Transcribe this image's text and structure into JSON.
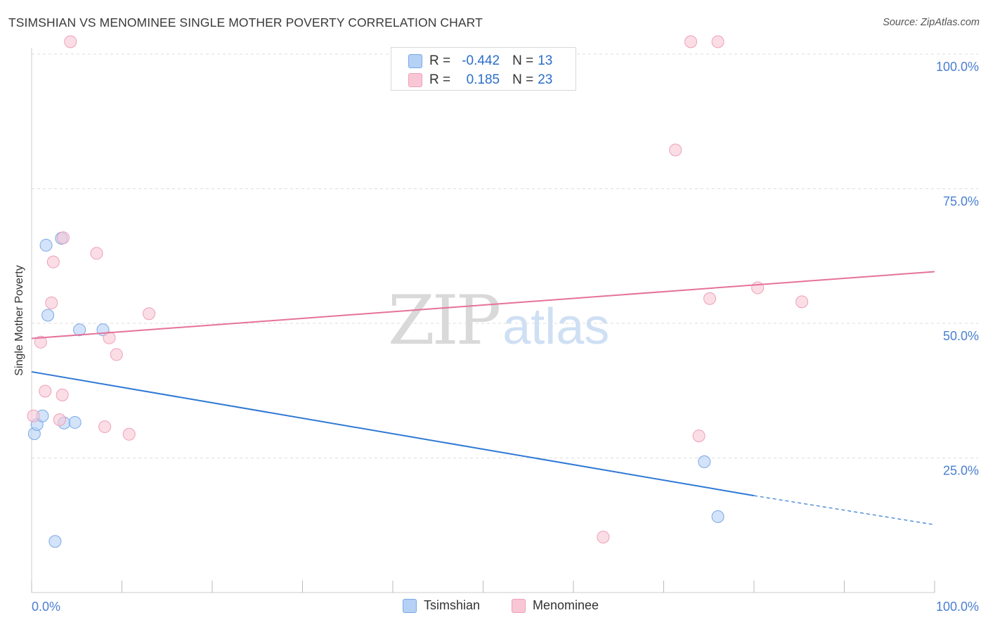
{
  "header": {
    "title": "TSIMSHIAN VS MENOMINEE SINGLE MOTHER POVERTY CORRELATION CHART",
    "source": "Source: ZipAtlas.com"
  },
  "watermark": {
    "zip": "ZIP",
    "atlas": "atlas"
  },
  "stats": {
    "rows": [
      {
        "r_label": "R = ",
        "r_value": "-0.442",
        "n_label": "N = ",
        "n_value": "13"
      },
      {
        "r_label": "R = ",
        "r_value": "0.185",
        "n_label": "N = ",
        "n_value": "23"
      }
    ]
  },
  "legend": {
    "items": [
      {
        "label": "Tsimshian"
      },
      {
        "label": "Menominee"
      }
    ]
  },
  "colors": {
    "tsimshian_fill": "#b5d1f5",
    "tsimshian_stroke": "#7aa8e6",
    "tsimshian_line": "#2f78d4",
    "menominee_fill": "#f9c6d5",
    "menominee_stroke": "#eea0b8",
    "menominee_line": "#e5729b",
    "tick_label": "#4a7fd0",
    "grid": "#dddddd"
  },
  "chart_data": {
    "type": "scatter",
    "title": "TSIMSHIAN VS MENOMINEE SINGLE MOTHER POVERTY CORRELATION CHART",
    "xlabel": "",
    "ylabel": "Single Mother Poverty",
    "xlim": [
      0,
      100
    ],
    "ylim": [
      0,
      104
    ],
    "x_tick_labels": [
      "0.0%",
      "100.0%"
    ],
    "y_ticks": [
      25,
      50,
      75,
      100
    ],
    "y_tick_labels": [
      "25.0%",
      "50.0%",
      "75.0%",
      "100.0%"
    ],
    "grid": "horizontal dashed",
    "legend_position": "bottom-center",
    "series": [
      {
        "name": "Tsimshian",
        "points": [
          [
            0.3,
            29.5
          ],
          [
            0.6,
            31.2
          ],
          [
            1.2,
            32.8
          ],
          [
            1.6,
            64.5
          ],
          [
            1.8,
            51.5
          ],
          [
            2.6,
            9.5
          ],
          [
            3.3,
            65.8
          ],
          [
            3.6,
            31.5
          ],
          [
            4.8,
            31.6
          ],
          [
            5.3,
            48.8
          ],
          [
            7.9,
            48.8
          ],
          [
            74.5,
            24.3
          ],
          [
            76.0,
            14.1
          ]
        ],
        "trend": {
          "x0": 0,
          "y0": 41.0,
          "x1": 80,
          "y1": 18.0,
          "dashed_to_x": 100,
          "dashed_to_y": 12.6
        }
      },
      {
        "name": "Menominee",
        "points": [
          [
            0.2,
            32.8
          ],
          [
            1.0,
            46.5
          ],
          [
            1.5,
            37.4
          ],
          [
            2.2,
            53.8
          ],
          [
            2.4,
            61.4
          ],
          [
            3.1,
            32.1
          ],
          [
            3.4,
            36.7
          ],
          [
            3.5,
            65.9
          ],
          [
            4.3,
            102.3
          ],
          [
            7.2,
            63.0
          ],
          [
            8.1,
            30.8
          ],
          [
            8.6,
            47.3
          ],
          [
            9.4,
            44.2
          ],
          [
            10.8,
            29.4
          ],
          [
            13.0,
            51.8
          ],
          [
            63.3,
            10.3
          ],
          [
            71.3,
            82.2
          ],
          [
            73.0,
            102.3
          ],
          [
            73.9,
            29.1
          ],
          [
            75.1,
            54.6
          ],
          [
            76.0,
            102.3
          ],
          [
            80.4,
            56.6
          ],
          [
            85.3,
            54.0
          ]
        ],
        "trend": {
          "x0": 0,
          "y0": 47.2,
          "x1": 100,
          "y1": 59.6
        }
      }
    ]
  }
}
